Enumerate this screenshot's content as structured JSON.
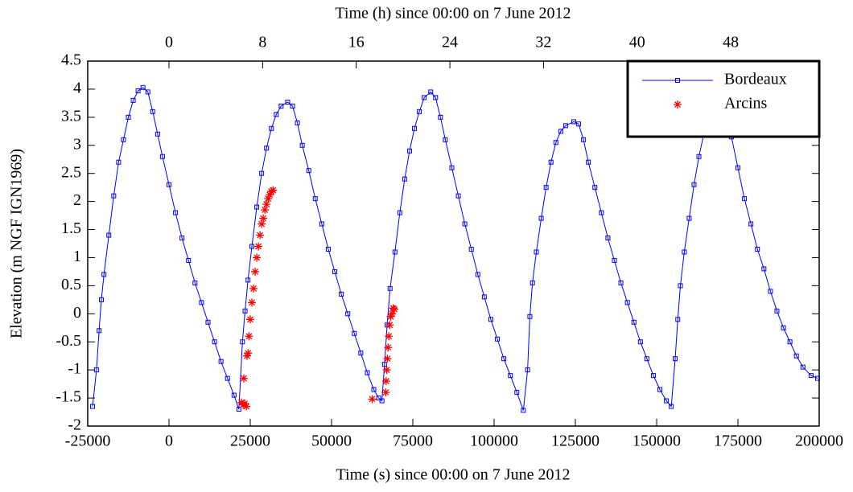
{
  "chart_data": {
    "type": "line",
    "xlabel": "Time (s) since 00:00 on 7 June 2012",
    "x2label": "Time (h) since 00:00 on 7 June 2012",
    "ylabel": "Elevation (m NGF IGN1969)",
    "xlim": [
      -25000,
      200000
    ],
    "xticks": [
      -25000,
      0,
      25000,
      50000,
      75000,
      100000,
      125000,
      150000,
      175000,
      200000
    ],
    "x2lim": [
      -6.944,
      55.556
    ],
    "x2ticks": [
      0,
      8,
      16,
      24,
      32,
      40,
      48
    ],
    "ylim": [
      -2,
      4.5
    ],
    "yticks": [
      -2,
      -1.5,
      -1,
      -0.5,
      0,
      0.5,
      1,
      1.5,
      2,
      2.5,
      3,
      3.5,
      4,
      4.5
    ],
    "legend": "upper right",
    "series": [
      {
        "name": "Bordeaux",
        "color": "#0000ff",
        "line": true,
        "marker": "square",
        "x": [
          -23500,
          -22300,
          -21500,
          -20800,
          -20000,
          -18500,
          -17000,
          -15500,
          -14000,
          -12500,
          -11000,
          -9500,
          -8000,
          -6500,
          -5000,
          -3500,
          -2000,
          0,
          2000,
          4000,
          6000,
          8000,
          10000,
          12000,
          14000,
          16000,
          18000,
          20000,
          21500,
          22600,
          23400,
          24300,
          25500,
          27000,
          28500,
          30000,
          31500,
          33000,
          34500,
          36500,
          38000,
          39500,
          41000,
          43000,
          45000,
          47000,
          49000,
          51000,
          53000,
          55000,
          57000,
          59000,
          61000,
          63000,
          64500,
          65500,
          66300,
          67100,
          68000,
          69500,
          71000,
          72500,
          74000,
          75500,
          77000,
          78500,
          80500,
          82000,
          83500,
          85000,
          87000,
          89000,
          91000,
          93000,
          95000,
          97000,
          99000,
          101000,
          103000,
          105000,
          107000,
          109000,
          110300,
          111000,
          111800,
          113000,
          114500,
          116000,
          117500,
          119000,
          120500,
          122000,
          124500,
          126000,
          127500,
          129000,
          131000,
          133000,
          135000,
          137000,
          139000,
          141000,
          143000,
          145000,
          147000,
          149000,
          151000,
          153000,
          154500,
          155700,
          156500,
          157300,
          158500,
          160000,
          161500,
          163000,
          164500,
          166500,
          168500,
          170000,
          171500,
          173000,
          175000,
          177000,
          179000,
          181000,
          183000,
          185000,
          187000,
          189000,
          191000,
          193000,
          195000,
          197500,
          199500
        ],
        "values": [
          -1.65,
          -1.0,
          -0.3,
          0.25,
          0.7,
          1.4,
          2.1,
          2.7,
          3.1,
          3.5,
          3.8,
          3.97,
          4.03,
          3.95,
          3.6,
          3.2,
          2.8,
          2.3,
          1.8,
          1.35,
          0.95,
          0.55,
          0.2,
          -0.15,
          -0.5,
          -0.85,
          -1.15,
          -1.45,
          -1.7,
          -0.5,
          0.05,
          0.6,
          1.2,
          1.9,
          2.5,
          2.95,
          3.3,
          3.55,
          3.7,
          3.77,
          3.7,
          3.4,
          3.0,
          2.55,
          2.05,
          1.6,
          1.15,
          0.75,
          0.35,
          0.0,
          -0.35,
          -0.7,
          -1.05,
          -1.35,
          -1.5,
          -1.55,
          -0.9,
          -0.2,
          0.45,
          1.1,
          1.8,
          2.4,
          2.9,
          3.3,
          3.6,
          3.85,
          3.95,
          3.85,
          3.5,
          3.1,
          2.6,
          2.1,
          1.6,
          1.15,
          0.7,
          0.3,
          -0.1,
          -0.45,
          -0.8,
          -1.1,
          -1.4,
          -1.72,
          -1.0,
          -0.05,
          0.55,
          1.1,
          1.7,
          2.25,
          2.7,
          3.05,
          3.25,
          3.35,
          3.42,
          3.38,
          3.1,
          2.7,
          2.25,
          1.8,
          1.35,
          0.95,
          0.55,
          0.2,
          -0.15,
          -0.5,
          -0.8,
          -1.1,
          -1.35,
          -1.55,
          -1.65,
          -0.8,
          -0.1,
          0.5,
          1.1,
          1.7,
          2.3,
          2.8,
          3.2,
          3.5,
          3.65,
          3.65,
          3.4,
          3.15,
          2.6,
          2.05,
          1.6,
          1.15,
          0.8,
          0.4,
          0.05,
          -0.25,
          -0.5,
          -0.75,
          -0.95,
          -1.1,
          -1.15
        ]
      },
      {
        "name": "Arcins",
        "color": "#ff0000",
        "line": false,
        "marker": "asterisk",
        "x": [
          22300,
          22800,
          23300,
          23800,
          23000,
          24000,
          24300,
          24600,
          25000,
          25500,
          26000,
          26500,
          27000,
          27500,
          28000,
          28500,
          29000,
          29500,
          30000,
          30500,
          31000,
          31500,
          32000,
          62500,
          66700,
          66800,
          67000,
          67200,
          67400,
          67600,
          67900,
          68200,
          68600,
          69000,
          69300
        ],
        "values": [
          -1.58,
          -1.62,
          -1.6,
          -1.65,
          -1.15,
          -0.75,
          -0.7,
          -0.4,
          -0.1,
          0.2,
          0.45,
          0.75,
          1.0,
          1.2,
          1.4,
          1.6,
          1.7,
          1.85,
          1.95,
          2.05,
          2.12,
          2.18,
          2.2,
          -1.52,
          -1.4,
          -1.2,
          -1.0,
          -0.8,
          -0.6,
          -0.4,
          -0.2,
          -0.05,
          0.0,
          0.1,
          0.08
        ]
      }
    ]
  }
}
